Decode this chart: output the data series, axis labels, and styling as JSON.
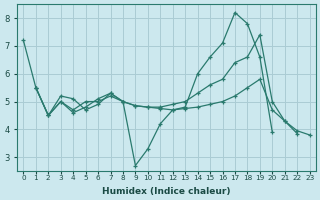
{
  "xlabel": "Humidex (Indice chaleur)",
  "bg_color": "#cce8ee",
  "grid_color": "#aaccd4",
  "line_color": "#2a7a6e",
  "xlim": [
    -0.5,
    23.5
  ],
  "ylim": [
    2.5,
    8.5
  ],
  "xticks": [
    0,
    1,
    2,
    3,
    4,
    5,
    6,
    7,
    8,
    9,
    10,
    11,
    12,
    13,
    14,
    15,
    16,
    17,
    18,
    19,
    20,
    21,
    22,
    23
  ],
  "yticks": [
    3,
    4,
    5,
    6,
    7,
    8
  ],
  "series": [
    {
      "x": [
        0,
        1,
        2,
        3,
        4,
        5,
        6,
        7,
        8,
        9,
        10,
        11,
        12,
        13,
        14,
        15,
        16,
        17,
        18,
        19,
        20
      ],
      "y": [
        7.2,
        5.5,
        4.5,
        5.2,
        5.1,
        4.7,
        4.9,
        5.3,
        5.0,
        2.7,
        3.3,
        4.2,
        4.7,
        4.8,
        6.0,
        6.6,
        7.1,
        8.2,
        7.8,
        6.6,
        3.9
      ]
    },
    {
      "x": [
        1,
        2,
        3,
        4,
        5,
        6,
        7,
        8,
        9,
        10,
        11,
        12,
        13,
        14,
        15,
        16,
        17,
        18,
        19,
        20,
        21,
        22
      ],
      "y": [
        5.5,
        4.5,
        5.0,
        4.7,
        5.0,
        5.0,
        5.2,
        5.0,
        4.85,
        4.8,
        4.8,
        4.9,
        5.0,
        5.3,
        5.6,
        5.8,
        6.4,
        6.6,
        7.4,
        5.0,
        4.3,
        3.85
      ]
    },
    {
      "x": [
        1,
        2,
        3,
        4,
        5,
        6,
        7,
        8,
        9,
        10,
        11,
        12,
        13,
        14,
        15,
        16,
        17,
        18,
        19,
        20,
        21,
        22,
        23
      ],
      "y": [
        5.5,
        4.5,
        5.0,
        4.6,
        4.8,
        5.1,
        5.3,
        5.0,
        4.85,
        4.8,
        4.75,
        4.7,
        4.75,
        4.8,
        4.9,
        5.0,
        5.2,
        5.5,
        5.8,
        4.7,
        4.3,
        3.95,
        3.8
      ]
    }
  ]
}
